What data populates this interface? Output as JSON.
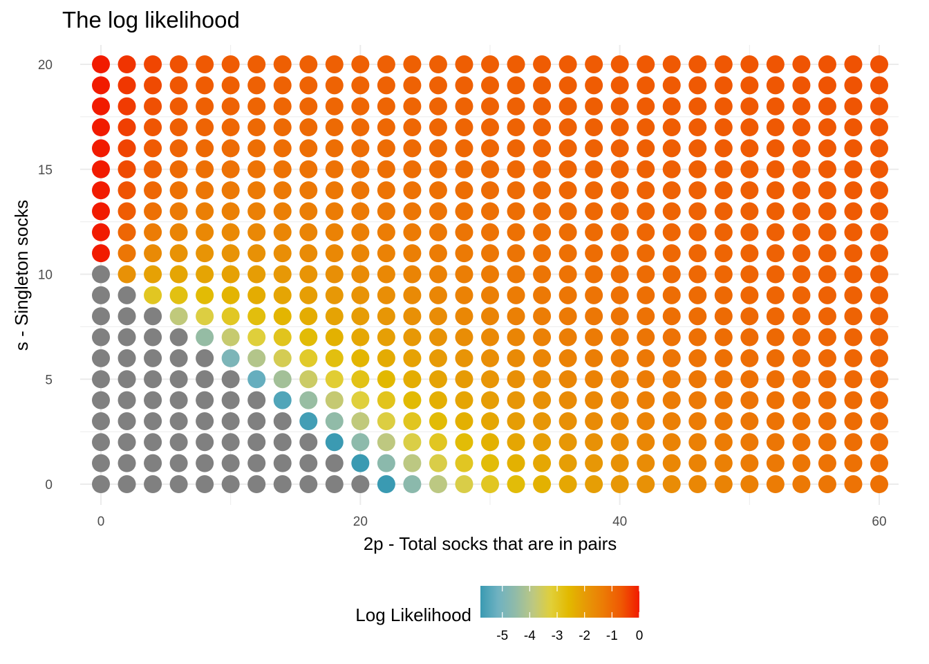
{
  "chart_data": {
    "type": "scatter",
    "title": "The log likelihood",
    "xlabel": "2p - Total socks that are in pairs",
    "ylabel": "s - Singleton socks",
    "xlim": [
      0,
      60
    ],
    "ylim": [
      0,
      20
    ],
    "x_ticks": [
      "0",
      "20",
      "40"
    ],
    "y_ticks": [
      "0",
      "5",
      "10",
      "15",
      "20"
    ],
    "x_values_step": 2,
    "y_values_step": 1,
    "grid": true,
    "na_color": "#808080",
    "legend": {
      "title": "Log Likelihood",
      "position": "bottom",
      "range": [
        -5.8,
        0
      ],
      "ticks": [
        "-5",
        "-4",
        "-3",
        "-2",
        "-1",
        "0"
      ],
      "colors": [
        "#3a9ab2",
        "#6fb2c1",
        "#91bba8",
        "#bdc881",
        "#e1cf38",
        "#e2b900",
        "#e79806",
        "#ec7a05",
        "#ef5703",
        "#f11b00"
      ]
    },
    "description": "Grid of points for 2p = 0..60 (step 2) and s = 0..20 (step 1); color = log likelihood; grey = not defined"
  }
}
